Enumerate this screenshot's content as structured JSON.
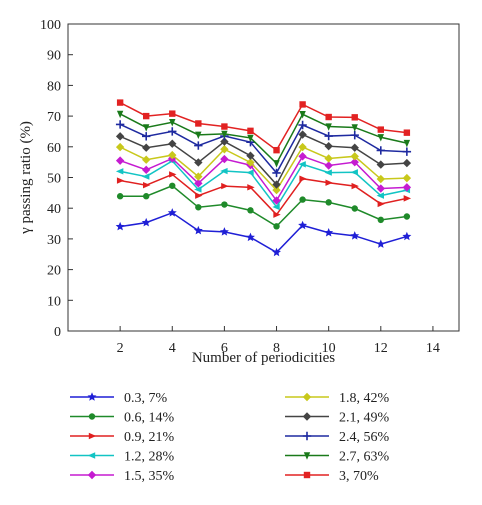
{
  "chart_data": {
    "type": "line",
    "xlabel": "Number of periodicities",
    "ylabel": "γ passing ratio (%)",
    "xlim": [
      0,
      15
    ],
    "ylim": [
      0,
      100
    ],
    "xticks": [
      2,
      4,
      6,
      8,
      10,
      12,
      14
    ],
    "yticks": [
      0,
      10,
      20,
      30,
      40,
      50,
      60,
      70,
      80,
      90,
      100
    ],
    "grid": false,
    "legend_position": "bottom",
    "x": [
      2,
      3,
      4,
      5,
      6,
      7,
      8,
      9,
      10,
      11,
      12,
      13
    ],
    "series": [
      {
        "name": "0.3, 7%",
        "color": "#1f1fd6",
        "marker": "star",
        "values": [
          34,
          35.3,
          38.5,
          32.7,
          32.3,
          30.5,
          25.6,
          34.4,
          32,
          31,
          28.3,
          30.8
        ]
      },
      {
        "name": "0.6, 14%",
        "color": "#1f8a2a",
        "marker": "circle",
        "values": [
          43.9,
          43.9,
          47.3,
          40.3,
          41.2,
          39.3,
          34.1,
          42.8,
          41.9,
          39.9,
          36.2,
          37.3
        ]
      },
      {
        "name": "0.9, 21%",
        "color": "#e02020",
        "marker": "tri-right",
        "values": [
          49,
          47.5,
          51,
          44.1,
          47.2,
          46.8,
          37.9,
          49.6,
          48.3,
          47.2,
          41.4,
          43.2
        ]
      },
      {
        "name": "1.2, 28%",
        "color": "#12c4c4",
        "marker": "tri-left",
        "values": [
          52,
          50.3,
          55.4,
          46.1,
          52.1,
          51.6,
          40.4,
          54.3,
          51.6,
          51.7,
          44.1,
          45.9
        ]
      },
      {
        "name": "1.5, 35%",
        "color": "#c51bd1",
        "marker": "diamond",
        "values": [
          55.5,
          52.5,
          56.2,
          48.1,
          56,
          54,
          42.5,
          56.9,
          53.9,
          55,
          46.4,
          46.8
        ]
      },
      {
        "name": "1.8, 42%",
        "color": "#c8c81b",
        "marker": "diamond",
        "values": [
          59.9,
          55.8,
          57.3,
          50.3,
          59.2,
          54.9,
          45.9,
          59.9,
          56.2,
          56.9,
          49.5,
          49.8
        ]
      },
      {
        "name": "2.1, 49%",
        "color": "#444444",
        "marker": "diamond",
        "values": [
          63.4,
          59.7,
          61,
          54.9,
          61.7,
          57.1,
          47.7,
          64,
          60.2,
          59.7,
          54.2,
          54.7
        ]
      },
      {
        "name": "2.4, 56%",
        "color": "#1e2aa0",
        "marker": "plus",
        "values": [
          67.3,
          63.4,
          65,
          60.4,
          63.5,
          61.5,
          51.5,
          67.1,
          63.5,
          63.8,
          58.8,
          58.4
        ]
      },
      {
        "name": "2.7, 63%",
        "color": "#1a7a1a",
        "marker": "tri-down",
        "values": [
          70.7,
          66.3,
          68,
          63.9,
          64.2,
          62.9,
          54.6,
          70.6,
          66.6,
          66.3,
          63.1,
          61.2
        ]
      },
      {
        "name": "3, 70%",
        "color": "#e22222",
        "marker": "square",
        "values": [
          74.4,
          70,
          70.8,
          67.6,
          66.6,
          65.2,
          58.9,
          73.8,
          69.7,
          69.6,
          65.6,
          64.6
        ]
      }
    ]
  }
}
